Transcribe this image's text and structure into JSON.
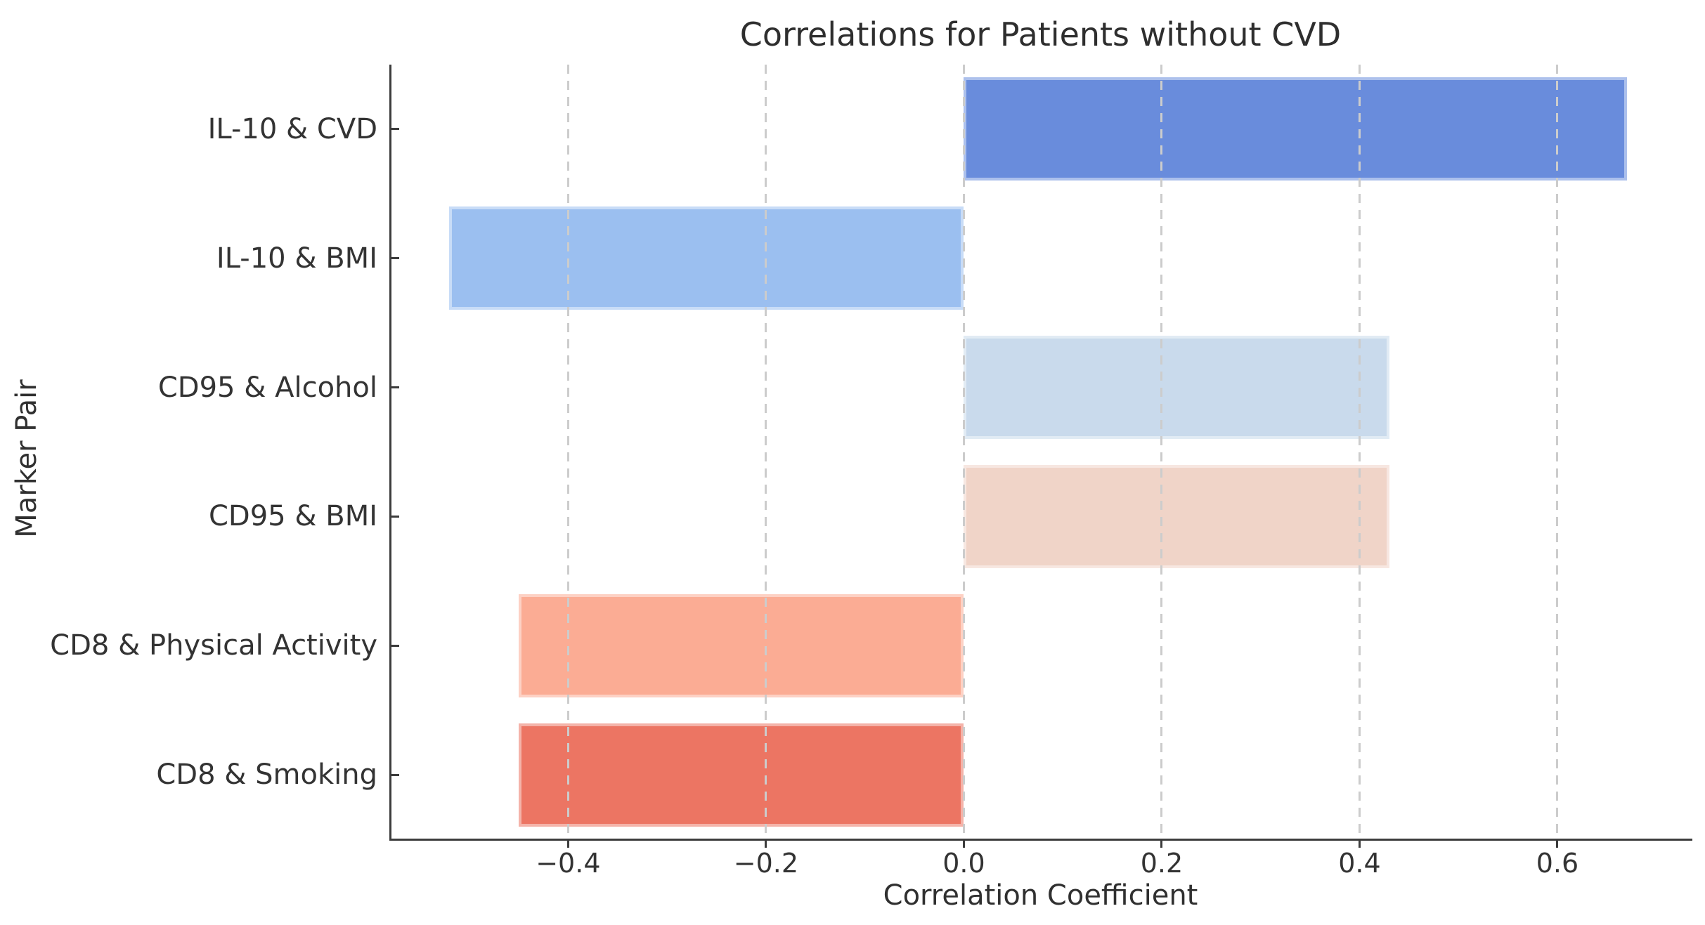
{
  "chart_data": {
    "type": "bar",
    "orientation": "horizontal",
    "title": "Correlations for Patients without CVD",
    "xlabel": "Correlation Coefficient",
    "ylabel": "Marker Pair",
    "categories": [
      "IL-10 & CVD",
      "IL-10 & BMI",
      "CD95 & Alcohol",
      "CD95 & BMI",
      "CD8 & Physical Activity",
      "CD8 & Smoking"
    ],
    "values": [
      0.67,
      -0.52,
      0.43,
      0.43,
      -0.45,
      -0.45
    ],
    "bar_colors": [
      "#698CDC",
      "#9BBFF0",
      "#C9DAEC",
      "#F0D4C8",
      "#FBAC94",
      "#EC7563"
    ],
    "xlim": [
      -0.58,
      0.735
    ],
    "xticks": [
      -0.4,
      -0.2,
      0.0,
      0.2,
      0.4,
      0.6
    ],
    "xtick_labels": [
      "−0.4",
      "−0.2",
      "0.0",
      "0.2",
      "0.4",
      "0.6"
    ],
    "grid": "vertical-dashed-above-bars",
    "gridline_color": "#cccccc",
    "axis_color": "#3c3c3c",
    "text_color": "#333333",
    "legend": "none",
    "bar_height_fraction": 0.8
  }
}
